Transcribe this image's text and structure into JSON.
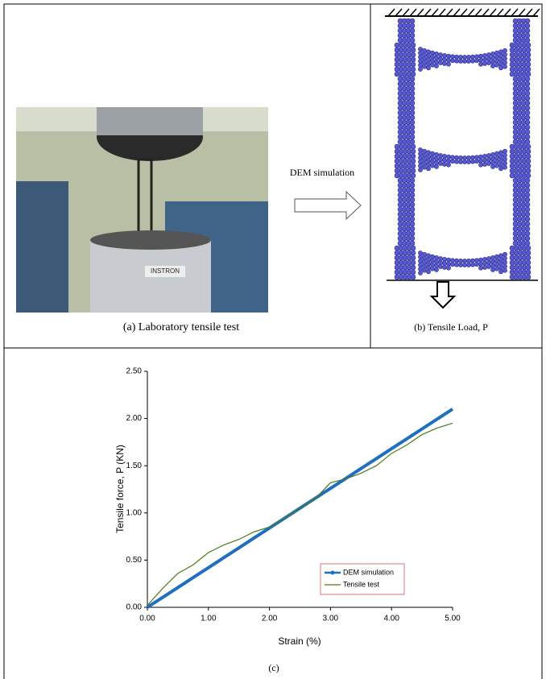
{
  "figure": {
    "panel_a_caption": "(a) Laboratory tensile test",
    "photo_label": "INSTRON",
    "arrow_label": "DEM simulation",
    "panel_b_caption": "(b) Tensile Load, P",
    "panel_c_caption": "(c)"
  },
  "chart_data": {
    "type": "line",
    "xlabel": "Strain (%)",
    "ylabel": "Tensile force, P (KN)",
    "x": [
      0,
      0.25,
      0.5,
      0.75,
      1,
      1.25,
      1.5,
      1.75,
      2,
      2.25,
      2.5,
      2.75,
      3,
      3.25,
      3.5,
      3.75,
      4,
      4.25,
      4.5,
      4.75,
      5
    ],
    "series": [
      {
        "name": "DEM simulation",
        "color": "#1f6fc0",
        "values": [
          0,
          0.105,
          0.21,
          0.315,
          0.42,
          0.525,
          0.63,
          0.735,
          0.84,
          0.945,
          1.05,
          1.155,
          1.26,
          1.365,
          1.47,
          1.575,
          1.68,
          1.785,
          1.89,
          1.995,
          2.1
        ]
      },
      {
        "name": "Tensile test",
        "color": "#4a7a1e",
        "values": [
          0.02,
          0.2,
          0.36,
          0.45,
          0.58,
          0.66,
          0.72,
          0.8,
          0.85,
          0.95,
          1.05,
          1.15,
          1.32,
          1.36,
          1.42,
          1.5,
          1.63,
          1.72,
          1.83,
          1.9,
          1.95
        ]
      }
    ],
    "xlim": [
      0,
      5
    ],
    "ylim": [
      0,
      2.5
    ],
    "xticks": [
      {
        "value": 0,
        "label": "0.00"
      },
      {
        "value": 1,
        "label": "1.00"
      },
      {
        "value": 2,
        "label": "2.00"
      },
      {
        "value": 3,
        "label": "3.00"
      },
      {
        "value": 4,
        "label": "4.00"
      },
      {
        "value": 5,
        "label": "5.00"
      }
    ],
    "yticks": [
      {
        "value": 0,
        "label": "0.00"
      },
      {
        "value": 0.5,
        "label": "0.50"
      },
      {
        "value": 1,
        "label": "1.00"
      },
      {
        "value": 1.5,
        "label": "1.50"
      },
      {
        "value": 2,
        "label": "2.00"
      },
      {
        "value": 2.5,
        "label": "2.50"
      }
    ],
    "legend": "lower right"
  }
}
